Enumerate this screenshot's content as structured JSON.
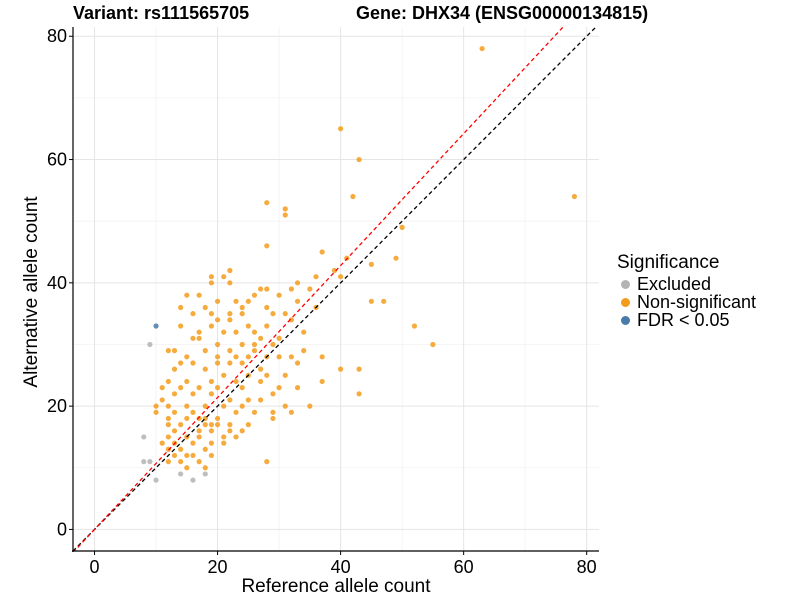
{
  "title_variant": "Variant: rs111565705",
  "title_gene": "Gene: DHX34 (ENSG00000134815)",
  "legend": {
    "title": "Significance",
    "items": [
      {
        "label": "Excluded",
        "color": "#b3b3b3"
      },
      {
        "label": "Non-significant",
        "color": "#f39c1b"
      },
      {
        "label": "FDR < 0.05",
        "color": "#4a7aa8"
      }
    ]
  },
  "chart_data": {
    "type": "scatter",
    "xlabel": "Reference allele count",
    "ylabel": "Alternative allele count",
    "xlim": [
      -3.5,
      82
    ],
    "ylim": [
      -3.5,
      81.5
    ],
    "xticks": [
      0,
      20,
      40,
      60,
      80
    ],
    "yticks": [
      0,
      20,
      40,
      60,
      80
    ],
    "grid": true,
    "legend_position": "right",
    "reference_lines": [
      {
        "kind": "identity",
        "slope": 1.0,
        "color": "#000000",
        "style": "dashed"
      },
      {
        "kind": "expected",
        "slope": 1.07,
        "color": "#ff0000",
        "style": "dashed"
      }
    ],
    "series": [
      {
        "name": "Excluded",
        "color": "#b3b3b3",
        "points": [
          [
            8,
            15
          ],
          [
            8,
            11
          ],
          [
            9,
            11
          ],
          [
            9,
            30
          ],
          [
            10,
            8
          ],
          [
            14,
            9
          ],
          [
            16,
            8
          ],
          [
            18,
            9
          ]
        ]
      },
      {
        "name": "FDR < 0.05",
        "color": "#4a7aa8",
        "points": [
          [
            10,
            33
          ]
        ]
      },
      {
        "name": "Non-significant",
        "color": "#f39c1b",
        "points": [
          [
            63,
            78
          ],
          [
            40,
            65
          ],
          [
            43,
            60
          ],
          [
            78,
            54
          ],
          [
            42,
            54
          ],
          [
            28,
            53
          ],
          [
            31,
            52
          ],
          [
            31,
            51
          ],
          [
            50,
            49
          ],
          [
            28,
            46
          ],
          [
            37,
            45
          ],
          [
            41,
            44
          ],
          [
            45,
            43
          ],
          [
            49,
            44
          ],
          [
            39,
            42
          ],
          [
            36,
            41
          ],
          [
            40,
            41
          ],
          [
            32,
            39
          ],
          [
            35,
            39
          ],
          [
            33,
            40
          ],
          [
            30,
            38
          ],
          [
            26,
            38
          ],
          [
            27,
            39
          ],
          [
            28,
            39
          ],
          [
            25,
            37
          ],
          [
            24,
            36
          ],
          [
            21,
            41
          ],
          [
            22,
            42
          ],
          [
            22,
            40
          ],
          [
            19,
            41
          ],
          [
            19,
            40
          ],
          [
            17,
            38
          ],
          [
            15,
            38
          ],
          [
            18,
            36
          ],
          [
            20,
            37
          ],
          [
            23,
            37
          ],
          [
            33,
            37
          ],
          [
            36,
            36
          ],
          [
            45,
            37
          ],
          [
            47,
            37
          ],
          [
            31,
            35
          ],
          [
            29,
            35
          ],
          [
            28,
            36
          ],
          [
            24,
            35
          ],
          [
            22,
            35
          ],
          [
            19,
            35
          ],
          [
            14,
            36
          ],
          [
            16,
            35
          ],
          [
            20,
            34
          ],
          [
            22,
            34
          ],
          [
            25,
            33
          ],
          [
            28,
            33
          ],
          [
            32,
            34
          ],
          [
            34,
            32
          ],
          [
            52,
            33
          ],
          [
            14,
            33
          ],
          [
            19,
            33
          ],
          [
            17,
            32
          ],
          [
            21,
            32
          ],
          [
            23,
            32
          ],
          [
            26,
            32
          ],
          [
            27,
            31
          ],
          [
            30,
            31
          ],
          [
            16,
            31
          ],
          [
            17,
            31
          ],
          [
            20,
            30
          ],
          [
            24,
            30
          ],
          [
            26,
            30
          ],
          [
            29,
            30
          ],
          [
            55,
            30
          ],
          [
            12,
            29
          ],
          [
            13,
            29
          ],
          [
            18,
            29
          ],
          [
            20,
            28
          ],
          [
            22,
            29
          ],
          [
            25,
            28
          ],
          [
            26,
            29
          ],
          [
            23,
            28
          ],
          [
            28,
            28
          ],
          [
            30,
            28
          ],
          [
            15,
            28
          ],
          [
            32,
            28
          ],
          [
            34,
            29
          ],
          [
            37,
            28
          ],
          [
            33,
            27
          ],
          [
            14,
            27
          ],
          [
            16,
            27
          ],
          [
            20,
            27
          ],
          [
            22,
            27
          ],
          [
            24,
            27
          ],
          [
            27,
            26
          ],
          [
            13,
            26
          ],
          [
            18,
            26
          ],
          [
            21,
            25
          ],
          [
            25,
            25
          ],
          [
            28,
            25
          ],
          [
            31,
            25
          ],
          [
            12,
            24
          ],
          [
            15,
            24
          ],
          [
            19,
            24
          ],
          [
            23,
            24
          ],
          [
            27,
            24
          ],
          [
            30,
            23
          ],
          [
            33,
            23
          ],
          [
            37,
            24
          ],
          [
            40,
            26
          ],
          [
            43,
            26
          ],
          [
            11,
            23
          ],
          [
            14,
            23
          ],
          [
            17,
            23
          ],
          [
            20,
            23
          ],
          [
            24,
            23
          ],
          [
            29,
            22
          ],
          [
            11,
            21
          ],
          [
            13,
            22
          ],
          [
            16,
            22
          ],
          [
            19,
            22
          ],
          [
            22,
            21
          ],
          [
            25,
            21
          ],
          [
            27,
            21
          ],
          [
            10,
            20
          ],
          [
            12,
            20
          ],
          [
            15,
            20
          ],
          [
            18,
            20
          ],
          [
            21,
            20
          ],
          [
            24,
            20
          ],
          [
            26,
            19
          ],
          [
            31,
            20
          ],
          [
            35,
            20
          ],
          [
            43,
            22
          ],
          [
            10,
            19
          ],
          [
            13,
            19
          ],
          [
            16,
            19
          ],
          [
            18,
            18
          ],
          [
            20,
            18
          ],
          [
            23,
            19
          ],
          [
            29,
            19
          ],
          [
            32,
            19
          ],
          [
            12,
            18
          ],
          [
            15,
            18
          ],
          [
            17,
            18
          ],
          [
            19,
            17
          ],
          [
            22,
            17
          ],
          [
            25,
            17
          ],
          [
            29,
            18
          ],
          [
            12,
            17
          ],
          [
            14,
            17
          ],
          [
            18,
            17
          ],
          [
            20,
            17
          ],
          [
            22,
            16
          ],
          [
            13,
            16
          ],
          [
            17,
            16
          ],
          [
            19,
            16
          ],
          [
            24,
            16
          ],
          [
            12,
            15
          ],
          [
            15,
            15
          ],
          [
            17,
            15
          ],
          [
            21,
            15
          ],
          [
            23,
            15
          ],
          [
            13,
            14
          ],
          [
            16,
            14
          ],
          [
            19,
            14
          ],
          [
            11,
            14
          ],
          [
            14,
            13
          ],
          [
            18,
            13
          ],
          [
            21,
            14
          ],
          [
            16,
            12
          ],
          [
            19,
            12
          ],
          [
            13,
            12
          ],
          [
            12,
            13
          ],
          [
            15,
            12
          ],
          [
            17,
            11
          ],
          [
            15,
            10
          ],
          [
            18,
            10
          ],
          [
            28,
            11
          ],
          [
            12,
            11
          ],
          [
            14,
            11
          ]
        ]
      }
    ]
  }
}
